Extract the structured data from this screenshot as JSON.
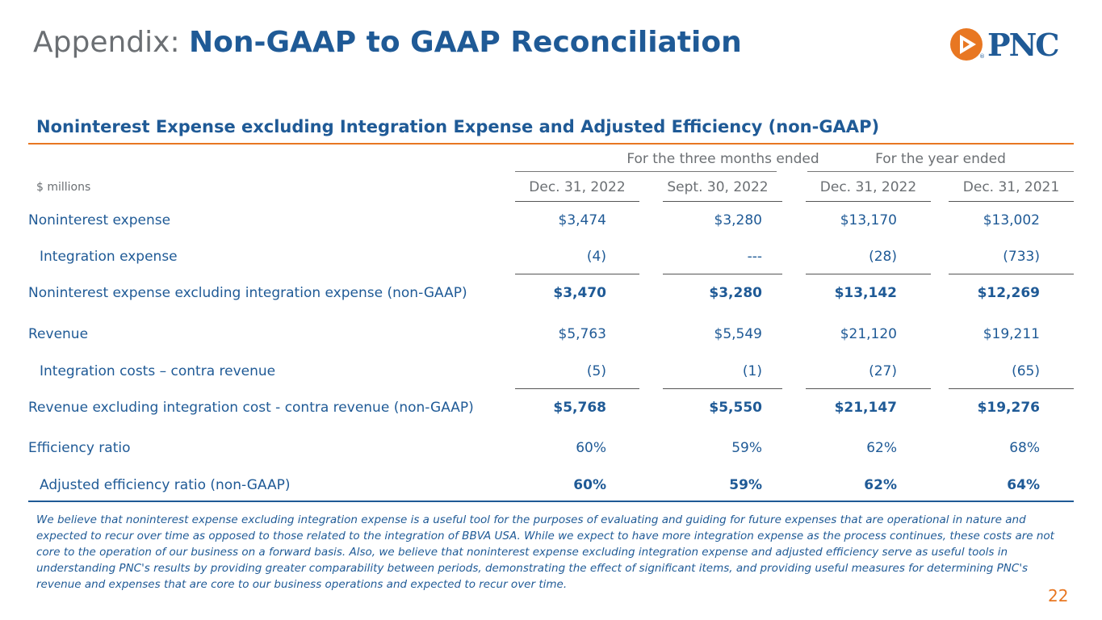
{
  "header": {
    "title_prefix": "Appendix:",
    "title_main": "Non-GAAP to GAAP Reconciliation",
    "logo_text": "PNC",
    "logo_registered": "®"
  },
  "colors": {
    "brand_blue": "#1f5a96",
    "accent_orange": "#e87722",
    "gray_text": "#6b6f73"
  },
  "section_title": "Noninterest Expense excluding Integration Expense and Adjusted Efficiency (non-GAAP)",
  "table": {
    "units_label": "$ millions",
    "groups": [
      "For the three months ended",
      "For the year ended"
    ],
    "columns": [
      "Dec. 31, 2022",
      "Sept. 30, 2022",
      "Dec. 31, 2022",
      "Dec. 31, 2021"
    ],
    "rows": [
      {
        "label": "Noninterest expense",
        "values": [
          "$3,474",
          "$3,280",
          "$13,170",
          "$13,002"
        ]
      },
      {
        "label": "Integration expense",
        "values": [
          "(4)",
          "---",
          "(28)",
          "(733)"
        ]
      },
      {
        "label": "Noninterest expense excluding integration expense (non-GAAP)",
        "values": [
          "$3,470",
          "$3,280",
          "$13,142",
          "$12,269"
        ]
      },
      {
        "label": "Revenue",
        "values": [
          "$5,763",
          "$5,549",
          "$21,120",
          "$19,211"
        ]
      },
      {
        "label": "Integration costs – contra revenue",
        "values": [
          "(5)",
          "(1)",
          "(27)",
          "(65)"
        ]
      },
      {
        "label": "Revenue excluding integration cost - contra revenue (non-GAAP)",
        "values": [
          "$5,768",
          "$5,550",
          "$21,147",
          "$19,276"
        ]
      },
      {
        "label": "Efficiency ratio",
        "values": [
          "60%",
          "59%",
          "62%",
          "68%"
        ]
      },
      {
        "label": "Adjusted efficiency ratio (non-GAAP)",
        "values": [
          "60%",
          "59%",
          "62%",
          "64%"
        ]
      }
    ]
  },
  "footnote": "We believe that noninterest expense excluding integration expense is a useful tool for the purposes of evaluating and guiding for future expenses that are operational in nature and expected to recur over time as opposed to those related to the integration of BBVA USA. While we expect to have more integration expense as the process continues, these costs are not core to the operation of our business on a forward basis. Also, we believe that noninterest expense excluding integration expense and adjusted efficiency serve as useful tools in understanding PNC's results by providing greater comparability between periods, demonstrating the effect of significant items, and providing useful measures for determining PNC's revenue and expenses that are core to our business operations and expected to recur over time.",
  "page_number": "22"
}
